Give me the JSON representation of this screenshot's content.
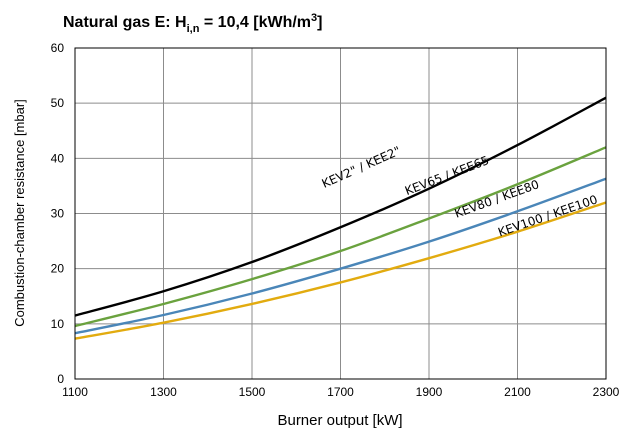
{
  "chart_data": {
    "type": "line",
    "title": {
      "pre": "Natural gas E: H",
      "sub": "i,n",
      "mid": " = 10,4 [kWh/m",
      "sup": "3",
      "post": "]"
    },
    "xlabel": "Burner output [kW]",
    "ylabel": "Combustion-chamber resistance [mbar]",
    "xlim": [
      1100,
      2300
    ],
    "ylim": [
      0,
      60
    ],
    "xticks": [
      1100,
      1300,
      1500,
      1700,
      1900,
      2100,
      2300
    ],
    "yticks": [
      0,
      10,
      20,
      30,
      40,
      50,
      60
    ],
    "grid": true,
    "legend": "inline labels on curves",
    "series": [
      {
        "name": "KEV2\" / KEE2\"",
        "color": "#000000",
        "x": [
          1100,
          1300,
          1500,
          1700,
          1900,
          2100,
          2300
        ],
        "y": [
          11.5,
          15.9,
          21.2,
          27.5,
          34.5,
          42.4,
          51.0
        ]
      },
      {
        "name": "KEV65 / KEE65",
        "color": "#6aa23e",
        "x": [
          1100,
          1300,
          1500,
          1700,
          1900,
          2100,
          2300
        ],
        "y": [
          9.6,
          13.6,
          18.1,
          23.2,
          29.1,
          35.3,
          42.0
        ]
      },
      {
        "name": "KEV80 / KEE80",
        "color": "#4a86b8",
        "x": [
          1100,
          1300,
          1500,
          1700,
          1900,
          2100,
          2300
        ],
        "y": [
          8.3,
          11.6,
          15.5,
          20.0,
          24.9,
          30.4,
          36.3
        ]
      },
      {
        "name": "KEV100 / KEE100",
        "color": "#e2ab0f",
        "x": [
          1100,
          1300,
          1500,
          1700,
          1900,
          2100,
          2300
        ],
        "y": [
          7.3,
          10.2,
          13.6,
          17.5,
          21.9,
          26.7,
          32.0
        ]
      }
    ]
  }
}
